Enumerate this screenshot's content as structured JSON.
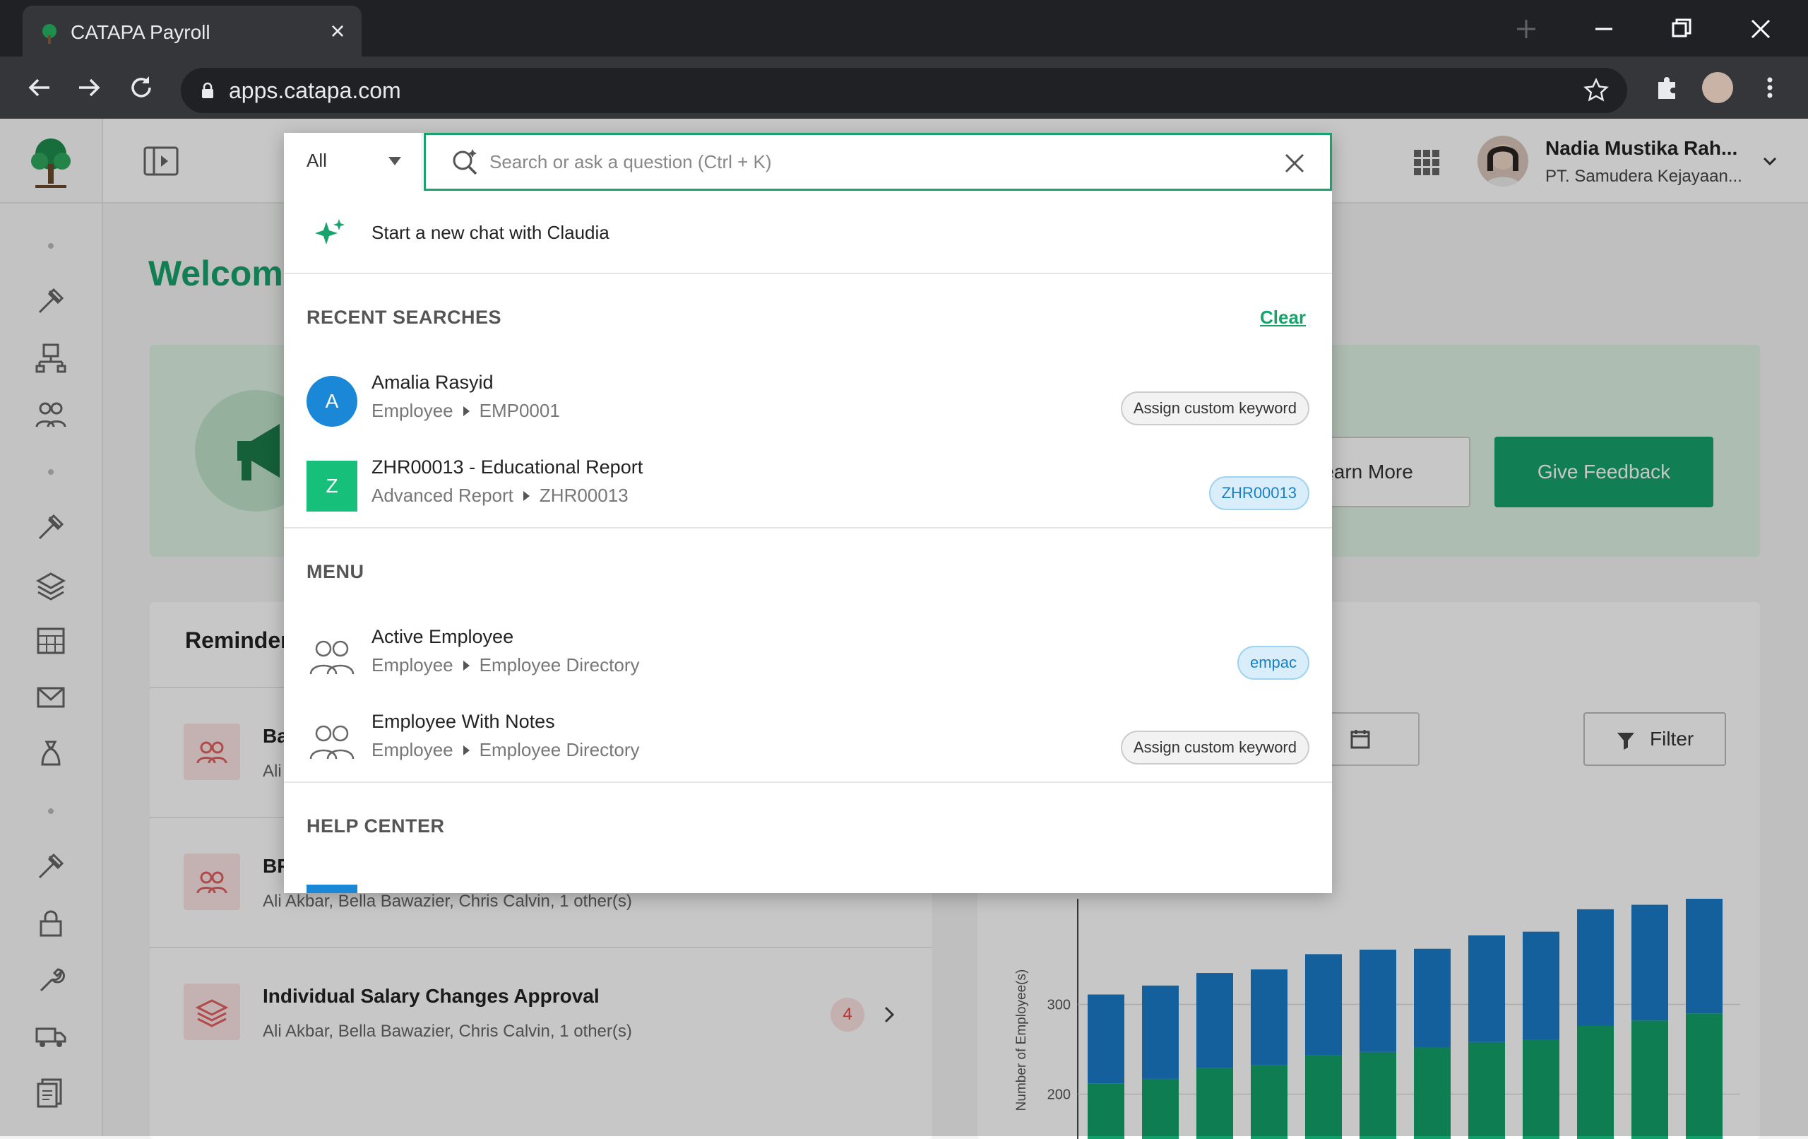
{
  "browser": {
    "tab_title": "CATAPA Payroll",
    "url": "apps.catapa.com"
  },
  "app": {
    "welcome_text": "Welcom",
    "user": {
      "name": "Nadia Mustika Rah...",
      "company": "PT. Samudera Kejayaan..."
    },
    "banner": {
      "learn_more": "earn More",
      "give_feedback": "Give Feedback"
    },
    "reminder": {
      "title": "Reminder",
      "rows": [
        {
          "title": "Ba",
          "subtitle": "Ali"
        },
        {
          "title": "BP",
          "subtitle": "Ali Akbar, Bella Bawazier, Chris Calvin, 1 other(s)"
        },
        {
          "title": "Individual Salary Changes Approval",
          "subtitle": "Ali Akbar, Bella Bawazier, Chris Calvin, 1 other(s)",
          "badge": "4"
        }
      ]
    },
    "chart_controls": {
      "filter_label": "Filter"
    }
  },
  "search": {
    "scope": "All",
    "placeholder": "Search or ask a question (Ctrl + K)",
    "claudia_label": "Start a new chat with Claudia",
    "recent": {
      "heading": "RECENT SEARCHES",
      "clear_label": "Clear",
      "items": [
        {
          "avatar": "A",
          "avatar_color": "#1a88d6",
          "title": "Amalia Rasyid",
          "category": "Employee",
          "detail": "EMP0001",
          "tag": "Assign custom keyword",
          "tag_style": "grey"
        },
        {
          "avatar": "Z",
          "avatar_color": "#17c07a",
          "title": "ZHR00013 - Educational Report",
          "category": "Advanced Report",
          "detail": "ZHR00013",
          "tag": "ZHR00013",
          "tag_style": "blue"
        }
      ]
    },
    "menu": {
      "heading": "MENU",
      "items": [
        {
          "icon": "employees-icon",
          "title": "Active Employee",
          "category": "Employee",
          "detail": "Employee Directory",
          "tag": "empac",
          "tag_style": "blue"
        },
        {
          "icon": "employees-icon",
          "title": "Employee With Notes",
          "category": "Employee",
          "detail": "Employee Directory",
          "tag": "Assign custom keyword",
          "tag_style": "grey"
        }
      ]
    },
    "help": {
      "heading": "HELP CENTER"
    }
  },
  "chart_data": {
    "type": "bar",
    "stacked": true,
    "ylabel": "Number of Employee(s)",
    "y_ticks": [
      200,
      300
    ],
    "series": [
      {
        "color": "#12a06a",
        "values": [
          212,
          217,
          229,
          232,
          243,
          247,
          252,
          258,
          261,
          276,
          282,
          290
        ]
      },
      {
        "color": "#1a7cc8",
        "values": [
          99,
          104,
          106,
          107,
          113,
          114,
          110,
          119,
          120,
          130,
          129,
          136
        ]
      }
    ]
  }
}
